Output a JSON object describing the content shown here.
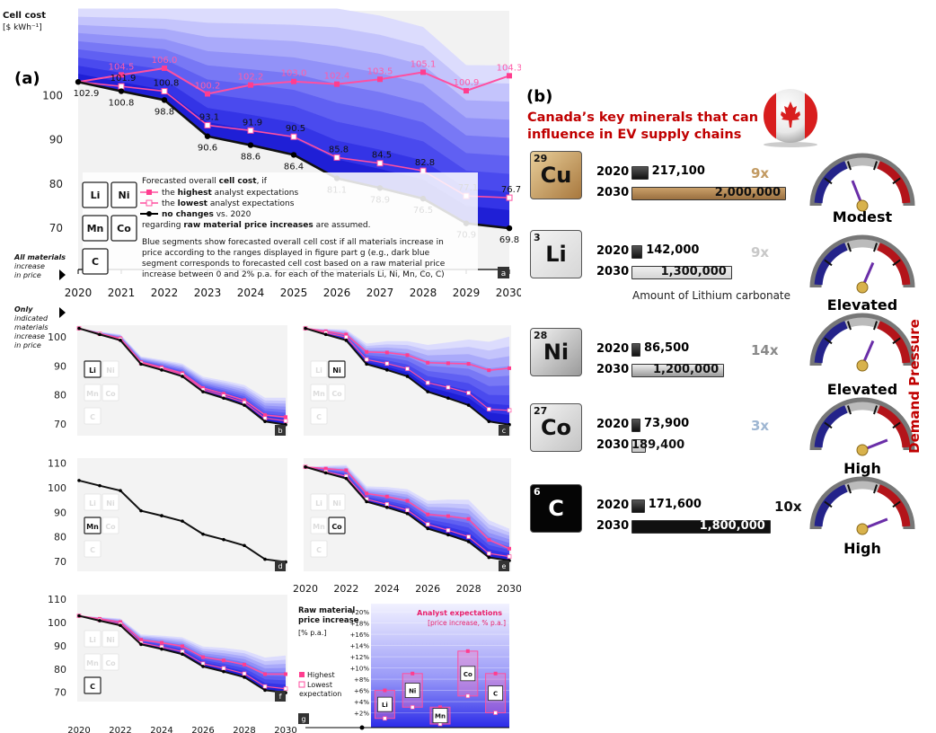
{
  "panel_a_label": "(a)",
  "panel_b_label": "(b)",
  "chart_data": [
    {
      "type": "area",
      "panel": "a",
      "ylabel": "Cell cost",
      "yunit": "[$ kWh⁻¹]",
      "x": [
        2020,
        2021,
        2022,
        2023,
        2024,
        2025,
        2026,
        2027,
        2028,
        2029,
        2030
      ],
      "ylim": [
        69,
        119
      ],
      "yticks": [
        70,
        80,
        90,
        100
      ],
      "series": [
        {
          "name": "the highest analyst expectations",
          "values": [
            102.9,
            104.5,
            106.0,
            100.2,
            102.2,
            103.0,
            102.4,
            103.5,
            105.1,
            100.9,
            104.3
          ],
          "labels": [
            "",
            "104.5",
            "106.0",
            "100.2",
            "102.2",
            "103.0",
            "102.4",
            "103.5",
            "105.1",
            "100.9",
            "104.3"
          ]
        },
        {
          "name": "the lowest analyst expectations",
          "values": [
            102.9,
            101.9,
            100.8,
            93.1,
            91.9,
            90.5,
            85.8,
            84.5,
            82.8,
            77.1,
            76.7
          ]
        },
        {
          "name": "no changes vs. 2020",
          "values": [
            102.9,
            100.8,
            98.8,
            90.6,
            88.6,
            86.4,
            81.1,
            78.9,
            76.5,
            70.9,
            69.8
          ]
        }
      ],
      "legend": {
        "intro": "Forecasted overall cell cost, if",
        "high_pre": "the ",
        "high_bold": "highest",
        "high_post": " analyst expectations",
        "low_pre": "the ",
        "low_bold": "lowest",
        "low_post": " analyst expectations",
        "nochange_bold": "no changes",
        "nochange_post": " vs. 2020",
        "tail_pre": "regarding ",
        "tail_bold": "raw material price increases",
        "tail_post": " are assumed."
      },
      "note": [
        "Blue segments show forecasted overall cell cost if all materials increase in",
        "price according to the ranges displayed in figure part g (e.g., dark blue",
        "segment corresponds to forecasted cell cost based on a raw material price",
        "increase between 0 and 2% p.a. for each of the materials Li, Ni, Mn, Co, C)"
      ],
      "side_label_all": [
        "All materials",
        "increase",
        "in price"
      ],
      "side_label_only": [
        "Only",
        "indicated",
        "materials",
        "increase",
        "in price"
      ],
      "corner": "a"
    },
    {
      "type": "area",
      "panels": [
        {
          "corner": "b",
          "material": "Li",
          "high": [
            102.9,
            101.1,
            99.5,
            91.3,
            89.5,
            87.5,
            82.4,
            80.4,
            78.2,
            73.1,
            72.4
          ],
          "low": [
            102.9,
            101.0,
            99.2,
            91.0,
            89.1,
            87.0,
            81.8,
            79.7,
            77.4,
            72.0,
            71.1
          ]
        },
        {
          "corner": "c",
          "material": "Ni",
          "high": [
            102.9,
            101.9,
            100.8,
            94.8,
            94.6,
            93.7,
            91.1,
            90.9,
            90.7,
            88.5,
            89.2
          ],
          "low": [
            102.9,
            101.4,
            99.9,
            92.2,
            90.8,
            89.0,
            84.2,
            82.6,
            80.7,
            75.1,
            74.7
          ]
        },
        {
          "corner": "d",
          "material": "Mn",
          "high": [
            102.9,
            100.8,
            98.8,
            90.6,
            88.6,
            86.4,
            81.1,
            78.9,
            76.5,
            70.9,
            69.8
          ],
          "low": [
            102.9,
            100.8,
            98.8,
            90.6,
            88.6,
            86.4,
            81.1,
            78.9,
            76.5,
            70.9,
            69.8
          ]
        },
        {
          "corner": "e",
          "material": "Co",
          "high": [
            102.9,
            102.3,
            101.7,
            93.5,
            92.4,
            90.9,
            86.1,
            85.5,
            84.5,
            77.1,
            74.0
          ],
          "low": [
            102.9,
            101.2,
            99.6,
            91.5,
            89.7,
            87.6,
            82.6,
            80.5,
            78.2,
            72.3,
            71.2
          ]
        },
        {
          "corner": "f",
          "material": "C",
          "high": [
            102.9,
            101.6,
            100.2,
            92.6,
            91.3,
            89.8,
            85.1,
            83.7,
            81.9,
            77.8,
            77.8
          ],
          "low": [
            102.9,
            101.1,
            99.3,
            91.3,
            89.5,
            87.5,
            82.3,
            80.3,
            78.0,
            72.5,
            71.5
          ]
        }
      ],
      "yticks_b": [
        70,
        80,
        90,
        100
      ],
      "yticks_d": [
        70,
        80,
        90,
        100,
        110
      ],
      "xticks": [
        "2020",
        "2022",
        "2024",
        "2026",
        "2028",
        "2030"
      ]
    },
    {
      "type": "bar",
      "panel": "g",
      "corner": "g",
      "title": [
        "Raw material",
        "price increase"
      ],
      "unit": "[% p.a.]",
      "box_title": "Analyst expectations",
      "box_subtitle": "[price increase, % p.a.]",
      "yticks": [
        "+2%",
        "+4%",
        "+6%",
        "+8%",
        "+10%",
        "+12%",
        "+14%",
        "+16%",
        "+18%",
        "+20%"
      ],
      "categories": [
        "Li",
        "Ni",
        "Mn",
        "Co",
        "C"
      ],
      "lowest": [
        1,
        3,
        0,
        5,
        2
      ],
      "highest": [
        6,
        9,
        3,
        13,
        9
      ],
      "legend_high": "Highest",
      "legend_low": [
        "Lowest",
        "expectation"
      ]
    }
  ],
  "materials_letters": [
    "Li",
    "Ni",
    "Mn",
    "Co",
    "C"
  ],
  "panel_b": {
    "title": [
      "Canada’s key minerals that can",
      "influence in EV supply chains"
    ],
    "lithium_note": "Amount of Lithium carbonate",
    "side_label": "Demand Pressure",
    "rows": [
      {
        "num": "29",
        "symbol": "Cu",
        "y2020_label": "2020",
        "y2030_label": "2030",
        "v2020": 217100,
        "v2020_text": "217,100",
        "v2030": 2000000,
        "v2030_text": "2,000,000",
        "mult": "9x",
        "color": "#b8894e",
        "mult_color": "#c29a62",
        "pressure": "Modest"
      },
      {
        "num": "3",
        "symbol": "Li",
        "y2020_label": "2020",
        "y2030_label": "2030",
        "v2020": 142000,
        "v2020_text": "142,000",
        "v2030": 1300000,
        "v2030_text": "1,300,000",
        "mult": "9x",
        "color": "#d6d6d6",
        "mult_color": "#c8c8c8",
        "pressure": "Elevated"
      },
      {
        "num": "28",
        "symbol": "Ni",
        "y2020_label": "2020",
        "y2030_label": "2030",
        "v2020": 86500,
        "v2020_text": "86,500",
        "v2030": 1200000,
        "v2030_text": "1,200,000",
        "mult": "14x",
        "color": "#9a9a9a",
        "mult_color": "#8a8a8a",
        "pressure": "Elevated"
      },
      {
        "num": "27",
        "symbol": "Co",
        "y2020_label": "2020",
        "y2030_label": "2030",
        "v2020": 73900,
        "v2020_text": "73,900",
        "v2030": 189400,
        "v2030_text": "189,400",
        "mult": "3x",
        "color": "#c4c4c4",
        "mult_color": "#9eb6d2",
        "pressure": "High"
      },
      {
        "num": "6",
        "symbol": "C",
        "y2020_label": "2020",
        "y2030_label": "2030",
        "v2020": 171600,
        "v2020_text": "171,600",
        "v2030": 1800000,
        "v2030_text": "1,800,000",
        "mult": "10x",
        "color": "#111111",
        "mult_color": "#111111",
        "pressure": "High"
      }
    ]
  }
}
